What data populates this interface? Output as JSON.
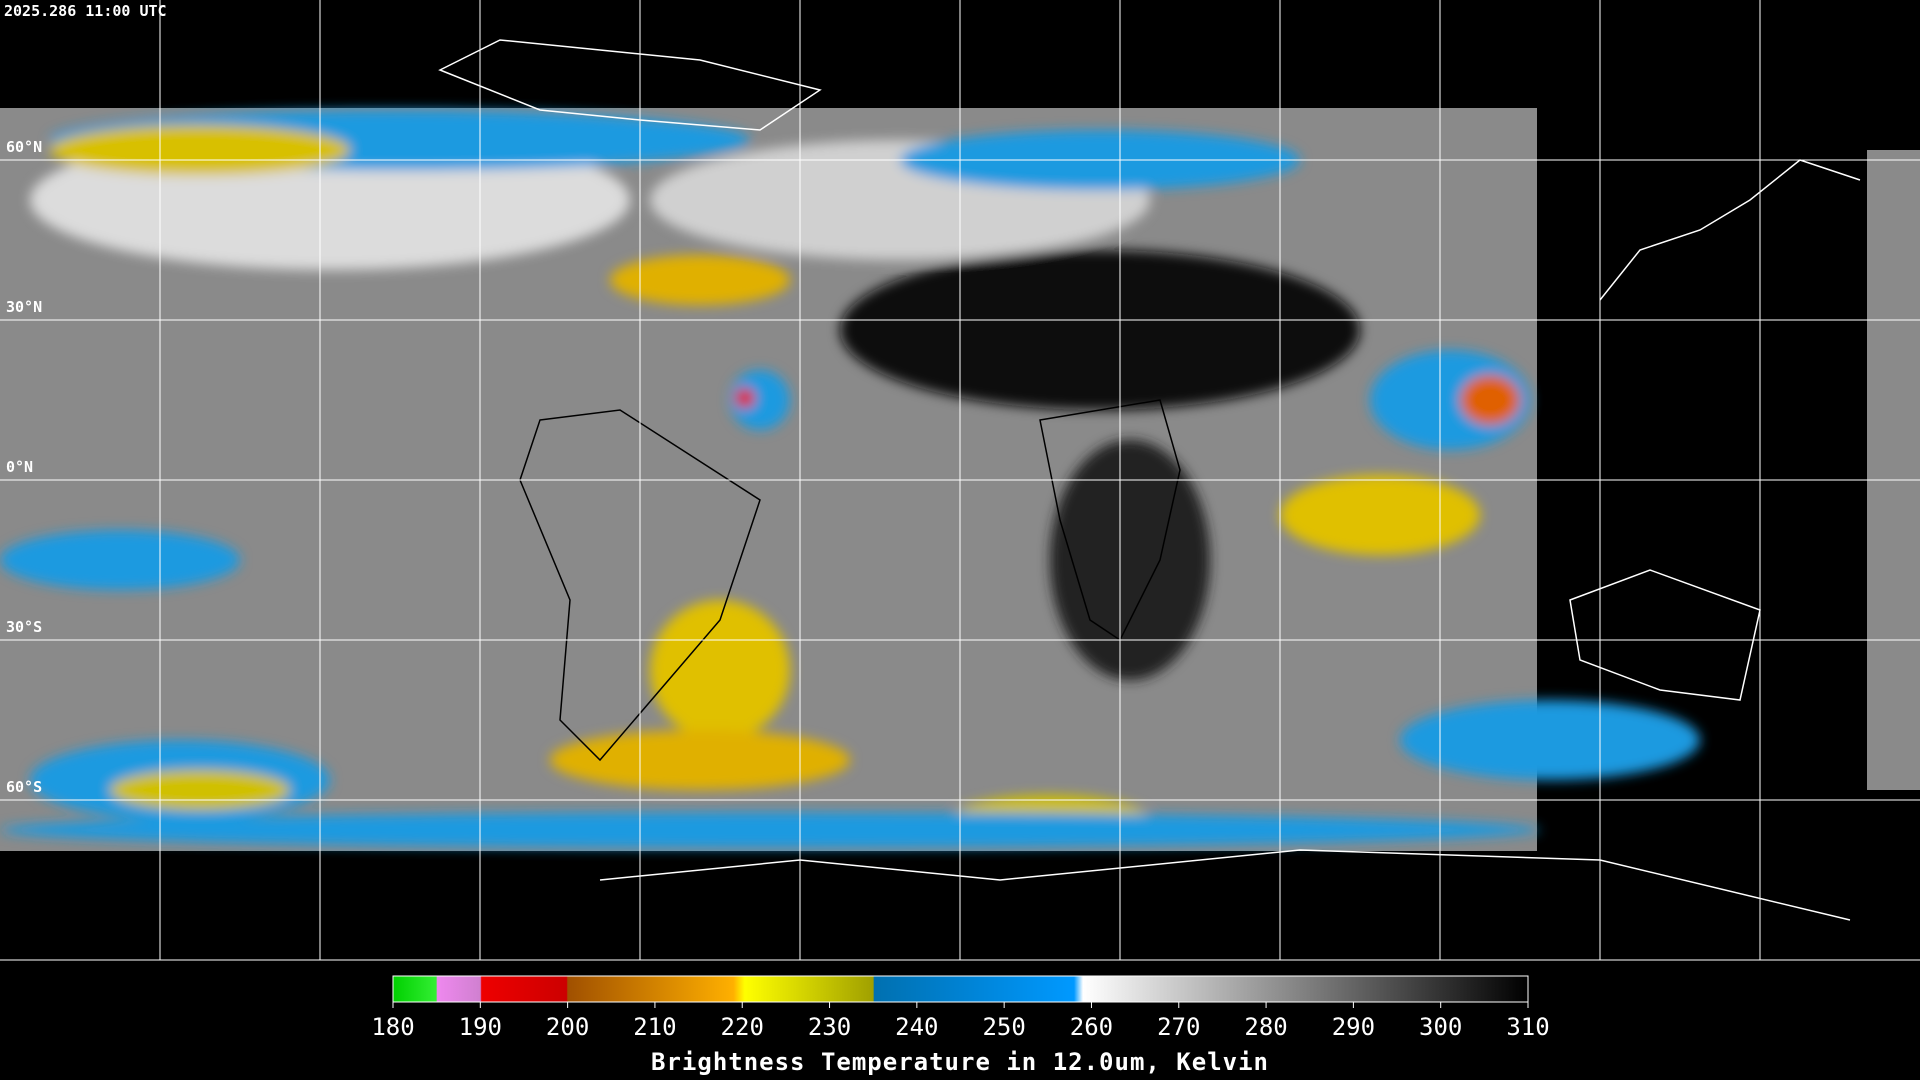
{
  "header": {
    "timestamp": "2025.286 11:00 UTC"
  },
  "map": {
    "latitude_labels": [
      {
        "value": 60,
        "label": "60°N"
      },
      {
        "value": 30,
        "label": "30°N"
      },
      {
        "value": 0,
        "label": "0°N"
      },
      {
        "value": -30,
        "label": "30°S"
      },
      {
        "value": -60,
        "label": "60°S"
      }
    ]
  },
  "colorbar": {
    "ticks": [
      180,
      190,
      200,
      210,
      220,
      230,
      240,
      250,
      260,
      270,
      280,
      290,
      300,
      310
    ],
    "title": "Brightness Temperature in 12.0um, Kelvin"
  }
}
